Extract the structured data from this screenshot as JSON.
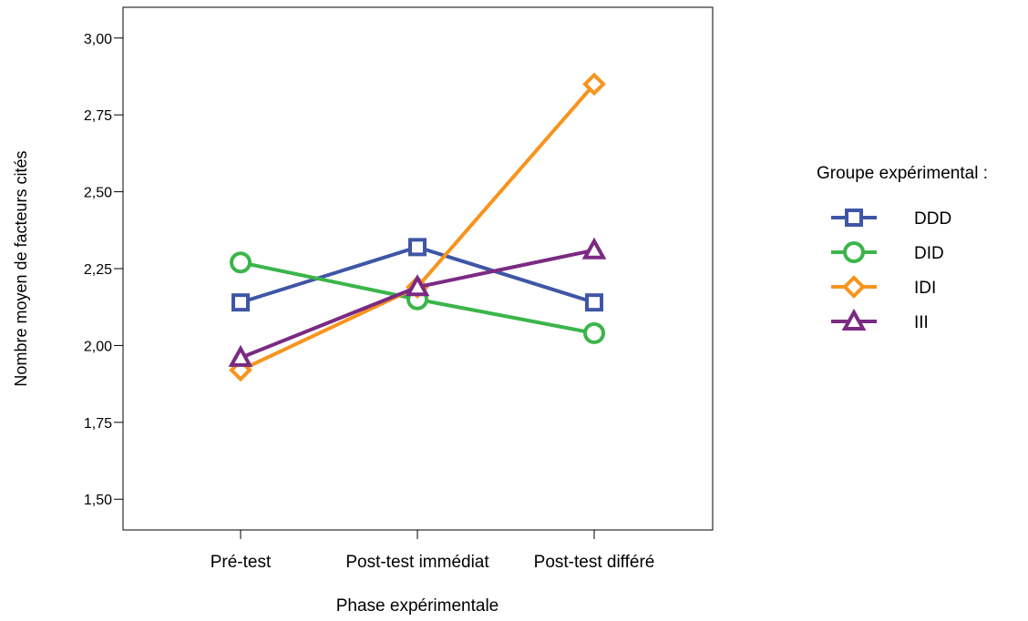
{
  "chart_data": {
    "type": "line",
    "xlabel": "Phase expérimentale",
    "ylabel": "Nombre moyen de facteurs cités",
    "categories": [
      "Pré-test",
      "Post-test immédiat",
      "Post-test différé"
    ],
    "ylim": [
      1.4,
      3.1
    ],
    "yticks": [
      1.5,
      1.75,
      2.0,
      2.25,
      2.5,
      2.75,
      3.0
    ],
    "ytick_labels": [
      "1,50",
      "1,75",
      "2,00",
      "2,25",
      "2,50",
      "2,75",
      "3,00"
    ],
    "grid": false,
    "legend": {
      "title": "Groupe expérimental :",
      "placement": "right"
    },
    "series": [
      {
        "name": "DDD",
        "values": [
          2.14,
          2.32,
          2.14
        ],
        "color": "#3f56a6",
        "marker": "square"
      },
      {
        "name": "DID",
        "values": [
          2.27,
          2.15,
          2.04
        ],
        "color": "#3bb54a",
        "marker": "circle"
      },
      {
        "name": "IDI",
        "values": [
          1.92,
          2.19,
          2.85
        ],
        "color": "#f7941d",
        "marker": "diamond"
      },
      {
        "name": "III",
        "values": [
          1.96,
          2.19,
          2.31
        ],
        "color": "#7b2a83",
        "marker": "triangle"
      }
    ]
  }
}
